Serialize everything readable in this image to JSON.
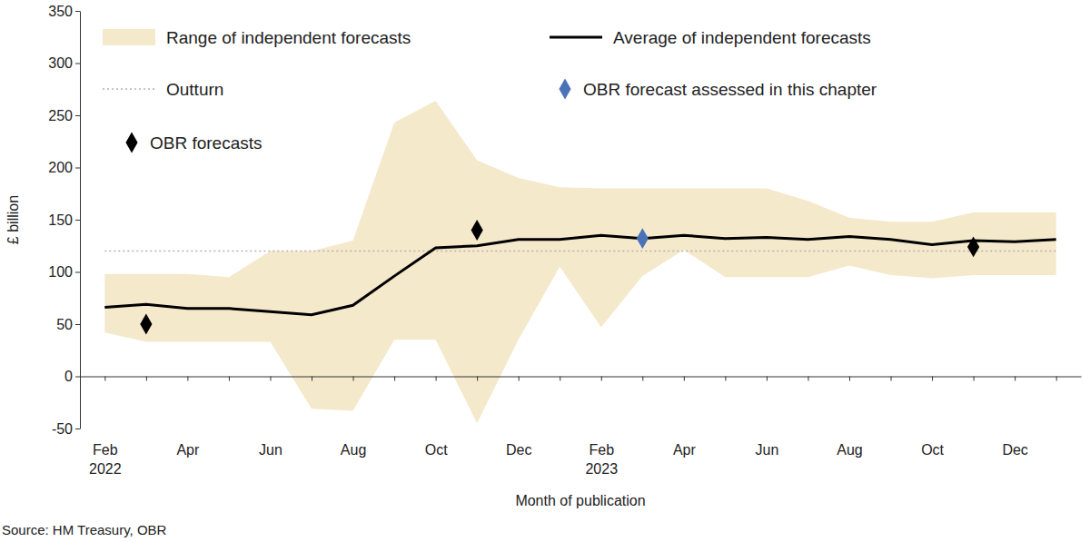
{
  "chart_data": {
    "type": "line",
    "y_label": "£ billion",
    "x_label": "Month of publication",
    "source": "Source: HM Treasury, OBR",
    "categories": [
      "Feb 2022",
      null,
      "Apr",
      null,
      "Jun",
      null,
      "Aug",
      null,
      "Oct",
      null,
      "Dec",
      null,
      "Feb 2023",
      null,
      "Apr",
      null,
      "Jun",
      null,
      "Aug",
      null,
      "Oct",
      null,
      "Dec",
      null
    ],
    "ylim": [
      -50,
      350
    ],
    "yticks": [
      -50,
      0,
      50,
      100,
      150,
      200,
      250,
      300,
      350
    ],
    "series": [
      {
        "name": "Range of independent forecasts",
        "type": "range",
        "color": "#f5e9cc",
        "high": [
          98,
          98,
          98,
          95,
          120,
          120,
          130,
          243,
          264,
          207,
          190,
          181,
          180,
          180,
          180,
          180,
          180,
          168,
          152,
          148,
          148,
          157,
          157,
          157
        ],
        "low": [
          42,
          33,
          33,
          33,
          33,
          -31,
          -33,
          35,
          35,
          -45,
          35,
          105,
          47,
          96,
          121,
          95,
          95,
          95,
          106,
          97,
          94,
          97,
          97,
          97
        ]
      },
      {
        "name": "Average of independent forecasts",
        "type": "line",
        "color": "#000000",
        "line_style": "solid",
        "values": [
          66,
          69,
          65,
          65,
          62,
          59,
          68,
          96,
          123,
          125,
          131,
          131,
          135,
          132,
          135,
          132,
          133,
          131,
          134,
          131,
          126,
          130,
          129,
          131
        ]
      },
      {
        "name": "Outturn",
        "type": "line",
        "color": "#b3b3b3",
        "line_style": "dotted",
        "values": [
          120,
          120,
          120,
          120,
          120,
          120,
          120,
          120,
          120,
          120,
          120,
          120,
          120,
          120,
          120,
          120,
          120,
          120,
          120,
          120,
          120,
          120,
          120,
          120
        ]
      },
      {
        "name": "OBR forecast assessed in this chapter",
        "type": "scatter",
        "color": "#4a72b8",
        "marker": "diamond",
        "values": [
          null,
          null,
          null,
          null,
          null,
          null,
          null,
          null,
          null,
          null,
          null,
          null,
          null,
          132,
          null,
          null,
          null,
          null,
          null,
          null,
          null,
          null,
          null,
          null
        ]
      },
      {
        "name": "OBR forecasts",
        "type": "scatter",
        "color": "#000000",
        "marker": "diamond",
        "values": [
          null,
          50,
          null,
          null,
          null,
          null,
          null,
          null,
          null,
          140,
          null,
          null,
          null,
          null,
          null,
          null,
          null,
          null,
          null,
          null,
          null,
          124,
          null,
          null
        ]
      }
    ]
  }
}
